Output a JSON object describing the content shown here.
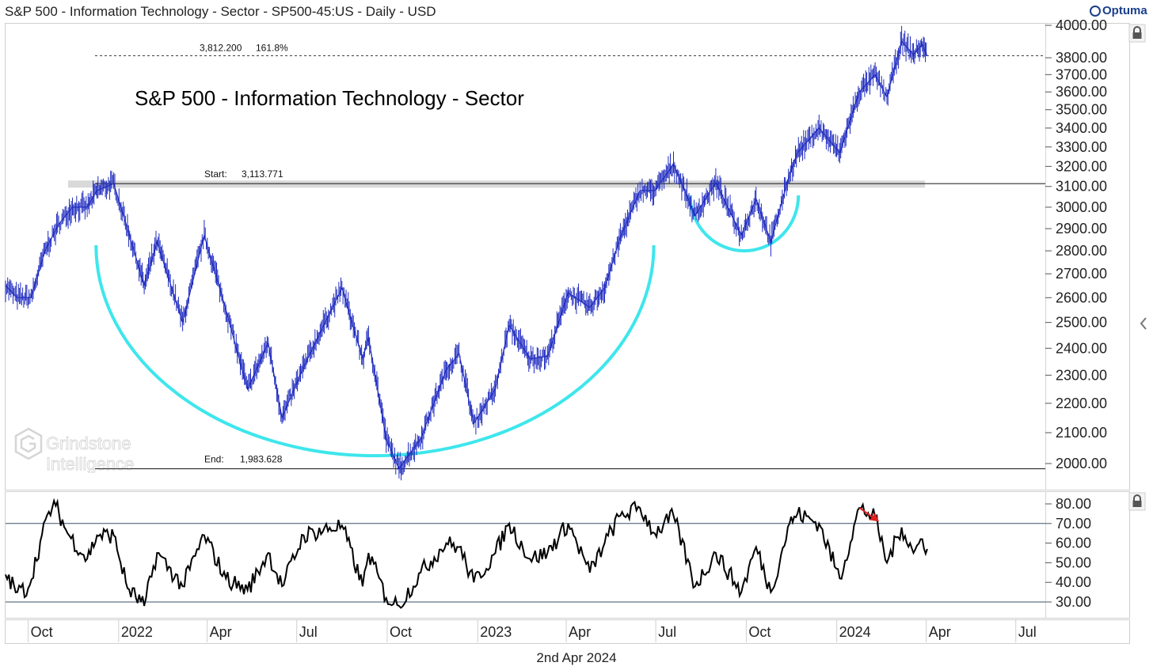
{
  "header": {
    "title": "S&P 500 - Information Technology - Sector - SP500-45:US - Daily - USD",
    "brand": "Optuma"
  },
  "footer": {
    "date": "2nd Apr 2024"
  },
  "watermark": {
    "line1": "Grindstone",
    "line2": "Intelligence"
  },
  "colors": {
    "price": "#1f2bbf",
    "cup": "#3ee6ec",
    "rsi": "#000000",
    "arrow": "#e02020",
    "band": "#d9d9d9"
  },
  "chart_data": [
    {
      "type": "line",
      "title": "S&P 500 - Information Technology - Sector",
      "series": [
        {
          "values": [
            {
              "date": "2021-09-08",
              "close": 2650
            },
            {
              "date": "2021-09-20",
              "close": 2600
            },
            {
              "date": "2021-10-04",
              "close": 2600
            },
            {
              "date": "2021-10-18",
              "close": 2800
            },
            {
              "date": "2021-11-01",
              "close": 2920
            },
            {
              "date": "2021-11-15",
              "close": 3000
            },
            {
              "date": "2021-11-30",
              "close": 3000
            },
            {
              "date": "2021-12-10",
              "close": 3080
            },
            {
              "date": "2021-12-27",
              "close": 3114
            },
            {
              "date": "2022-01-10",
              "close": 2900
            },
            {
              "date": "2022-01-27",
              "close": 2650
            },
            {
              "date": "2022-02-09",
              "close": 2840
            },
            {
              "date": "2022-03-07",
              "close": 2500
            },
            {
              "date": "2022-03-29",
              "close": 2870
            },
            {
              "date": "2022-04-20",
              "close": 2550
            },
            {
              "date": "2022-05-12",
              "close": 2250
            },
            {
              "date": "2022-06-02",
              "close": 2420
            },
            {
              "date": "2022-06-16",
              "close": 2150
            },
            {
              "date": "2022-07-08",
              "close": 2330
            },
            {
              "date": "2022-08-16",
              "close": 2640
            },
            {
              "date": "2022-09-06",
              "close": 2360
            },
            {
              "date": "2022-09-12",
              "close": 2440
            },
            {
              "date": "2022-09-30",
              "close": 2080
            },
            {
              "date": "2022-10-13",
              "close": 1984
            },
            {
              "date": "2022-11-04",
              "close": 2080
            },
            {
              "date": "2022-11-30",
              "close": 2320
            },
            {
              "date": "2022-12-13",
              "close": 2380
            },
            {
              "date": "2022-12-28",
              "close": 2130
            },
            {
              "date": "2023-01-19",
              "close": 2250
            },
            {
              "date": "2023-02-02",
              "close": 2490
            },
            {
              "date": "2023-02-23",
              "close": 2360
            },
            {
              "date": "2023-03-13",
              "close": 2370
            },
            {
              "date": "2023-04-03",
              "close": 2620
            },
            {
              "date": "2023-04-25",
              "close": 2560
            },
            {
              "date": "2023-05-10",
              "close": 2640
            },
            {
              "date": "2023-05-26",
              "close": 2860
            },
            {
              "date": "2023-06-15",
              "close": 3080
            },
            {
              "date": "2023-06-30",
              "close": 3080
            },
            {
              "date": "2023-07-19",
              "close": 3210
            },
            {
              "date": "2023-08-10",
              "close": 2960
            },
            {
              "date": "2023-08-31",
              "close": 3120
            },
            {
              "date": "2023-09-26",
              "close": 2870
            },
            {
              "date": "2023-10-11",
              "close": 3040
            },
            {
              "date": "2023-10-26",
              "close": 2840
            },
            {
              "date": "2023-11-14",
              "close": 3160
            },
            {
              "date": "2023-11-22",
              "close": 3270
            },
            {
              "date": "2023-12-14",
              "close": 3400
            },
            {
              "date": "2024-01-04",
              "close": 3270
            },
            {
              "date": "2024-01-24",
              "close": 3600
            },
            {
              "date": "2024-02-09",
              "close": 3700
            },
            {
              "date": "2024-02-21",
              "close": 3570
            },
            {
              "date": "2024-03-07",
              "close": 3900
            },
            {
              "date": "2024-03-19",
              "close": 3820
            },
            {
              "date": "2024-03-28",
              "close": 3880
            },
            {
              "date": "2024-04-02",
              "close": 3810
            }
          ]
        }
      ],
      "y_axis": {
        "scale": "log",
        "range": [
          1940,
          4000
        ],
        "ticks": [
          "4000.00",
          "3800.00",
          "3700.00",
          "3600.00",
          "3500.00",
          "3400.00",
          "3300.00",
          "3200.00",
          "3100.00",
          "3000.00",
          "2900.00",
          "2800.00",
          "2700.00",
          "2600.00",
          "2500.00",
          "2400.00",
          "2300.00",
          "2200.00",
          "2100.00",
          "2000.00"
        ]
      },
      "x_axis": {
        "range": [
          "2021-09-08",
          "2024-07-31"
        ],
        "ticks": [
          {
            "date": "2021-10-01",
            "label": "Oct"
          },
          {
            "date": "2022-01-01",
            "label": "2022"
          },
          {
            "date": "2022-04-01",
            "label": "Apr"
          },
          {
            "date": "2022-07-01",
            "label": "Jul"
          },
          {
            "date": "2022-10-01",
            "label": "Oct"
          },
          {
            "date": "2023-01-01",
            "label": "2023"
          },
          {
            "date": "2023-04-01",
            "label": "Apr"
          },
          {
            "date": "2023-07-01",
            "label": "Jul"
          },
          {
            "date": "2023-10-01",
            "label": "Oct"
          },
          {
            "date": "2024-01-01",
            "label": "2024"
          },
          {
            "date": "2024-04-01",
            "label": "Apr"
          },
          {
            "date": "2024-07-01",
            "label": "Jul"
          }
        ]
      },
      "levels": [
        {
          "name": "extension",
          "value": 3812.2,
          "text1": "3,812.200",
          "text2": "161.8%",
          "style": "dotted"
        },
        {
          "name": "start",
          "value": 3113.771,
          "label": "Start:",
          "text": "3,113.771",
          "style": "solid",
          "band": true
        },
        {
          "name": "end",
          "value": 1983.628,
          "label": "End:",
          "text": "1,983.628",
          "style": "solid"
        }
      ],
      "annotations": [
        {
          "type": "arc",
          "name": "large-cup",
          "from": "2021-12-09",
          "to": "2023-06-29",
          "depth_value": 2025
        },
        {
          "type": "arc",
          "name": "small-cup",
          "from": "2023-08-05",
          "to": "2023-11-23",
          "depth_value": 2800
        }
      ]
    },
    {
      "type": "line",
      "series": [
        {
          "values": [
            {
              "date": "2021-09-08",
              "value": 44
            },
            {
              "date": "2021-09-20",
              "value": 35
            },
            {
              "date": "2021-10-01",
              "value": 37
            },
            {
              "date": "2021-10-22",
              "value": 76
            },
            {
              "date": "2021-10-29",
              "value": 79
            },
            {
              "date": "2021-11-10",
              "value": 65
            },
            {
              "date": "2021-11-30",
              "value": 52
            },
            {
              "date": "2021-12-10",
              "value": 64
            },
            {
              "date": "2021-12-27",
              "value": 64
            },
            {
              "date": "2022-01-10",
              "value": 37
            },
            {
              "date": "2022-01-27",
              "value": 28
            },
            {
              "date": "2022-02-09",
              "value": 55
            },
            {
              "date": "2022-03-07",
              "value": 38
            },
            {
              "date": "2022-03-29",
              "value": 64
            },
            {
              "date": "2022-04-20",
              "value": 42
            },
            {
              "date": "2022-05-12",
              "value": 36
            },
            {
              "date": "2022-06-02",
              "value": 55
            },
            {
              "date": "2022-06-16",
              "value": 38
            },
            {
              "date": "2022-07-08",
              "value": 64
            },
            {
              "date": "2022-08-16",
              "value": 69
            },
            {
              "date": "2022-09-06",
              "value": 38
            },
            {
              "date": "2022-09-12",
              "value": 55
            },
            {
              "date": "2022-09-30",
              "value": 32
            },
            {
              "date": "2022-10-13",
              "value": 28
            },
            {
              "date": "2022-11-04",
              "value": 45
            },
            {
              "date": "2022-11-30",
              "value": 60
            },
            {
              "date": "2022-12-13",
              "value": 58
            },
            {
              "date": "2022-12-28",
              "value": 40
            },
            {
              "date": "2023-01-19",
              "value": 55
            },
            {
              "date": "2023-02-02",
              "value": 70
            },
            {
              "date": "2023-02-23",
              "value": 52
            },
            {
              "date": "2023-03-13",
              "value": 55
            },
            {
              "date": "2023-04-03",
              "value": 70
            },
            {
              "date": "2023-04-25",
              "value": 45
            },
            {
              "date": "2023-05-10",
              "value": 60
            },
            {
              "date": "2023-05-26",
              "value": 74
            },
            {
              "date": "2023-06-15",
              "value": 78
            },
            {
              "date": "2023-06-30",
              "value": 65
            },
            {
              "date": "2023-07-19",
              "value": 74
            },
            {
              "date": "2023-08-10",
              "value": 38
            },
            {
              "date": "2023-08-31",
              "value": 55
            },
            {
              "date": "2023-09-26",
              "value": 35
            },
            {
              "date": "2023-10-11",
              "value": 58
            },
            {
              "date": "2023-10-26",
              "value": 35
            },
            {
              "date": "2023-11-14",
              "value": 70
            },
            {
              "date": "2023-11-22",
              "value": 75
            },
            {
              "date": "2023-12-14",
              "value": 70
            },
            {
              "date": "2024-01-04",
              "value": 42
            },
            {
              "date": "2024-01-24",
              "value": 78
            },
            {
              "date": "2024-02-09",
              "value": 73
            },
            {
              "date": "2024-02-21",
              "value": 50
            },
            {
              "date": "2024-03-07",
              "value": 68
            },
            {
              "date": "2024-03-19",
              "value": 55
            },
            {
              "date": "2024-03-28",
              "value": 62
            },
            {
              "date": "2024-04-02",
              "value": 57
            }
          ]
        }
      ],
      "y_axis": {
        "range": [
          26,
          84
        ],
        "ticks": [
          "80.00",
          "70.00",
          "60.00",
          "50.00",
          "40.00",
          "30.00"
        ]
      },
      "levels": [
        {
          "name": "overbought",
          "value": 70
        },
        {
          "name": "oversold",
          "value": 30
        }
      ],
      "annotations": [
        {
          "type": "arrow",
          "name": "divergence-arrow",
          "from": {
            "date": "2024-01-24",
            "value": 78
          },
          "to": {
            "date": "2024-02-13",
            "value": 71
          }
        }
      ]
    }
  ]
}
